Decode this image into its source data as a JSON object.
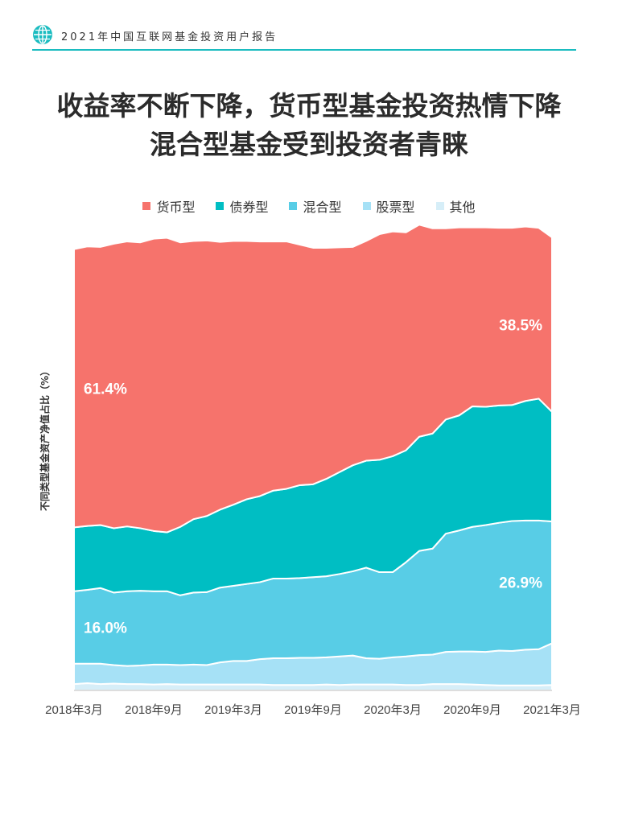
{
  "header": {
    "text": "2021年中国互联网基金投资用户报告",
    "icon": "globe-icon"
  },
  "title_lines": [
    "收益率不断下降，货币型基金投资热情下降",
    "混合型基金受到投资者青睐"
  ],
  "colors": {
    "accent": "#1bbcc0",
    "货币型": "#f6736c",
    "债券型": "#00bec3",
    "混合型": "#58cde6",
    "股票型": "#a6e1f6",
    "其他": "#d6eef8"
  },
  "chart_data": {
    "type": "area",
    "stacked": "percent",
    "ylabel": "不同类型基金资产净值占比（%）",
    "ylim": [
      0,
      100
    ],
    "x": [
      "2018年3月",
      "2018年4月",
      "2018年5月",
      "2018年6月",
      "2018年7月",
      "2018年8月",
      "2018年9月",
      "2018年10月",
      "2018年11月",
      "2018年12月",
      "2019年1月",
      "2019年2月",
      "2019年3月",
      "2019年4月",
      "2019年5月",
      "2019年6月",
      "2019年7月",
      "2019年8月",
      "2019年9月",
      "2019年10月",
      "2019年11月",
      "2019年12月",
      "2020年1月",
      "2020年2月",
      "2020年3月",
      "2020年4月",
      "2020年5月",
      "2020年6月",
      "2020年7月",
      "2020年8月",
      "2020年9月",
      "2020年10月",
      "2020年11月",
      "2020年12月",
      "2021年1月",
      "2021年2月",
      "2021年3月"
    ],
    "xtick_labels": [
      "2018年3月",
      "2018年9月",
      "2019年3月",
      "2019年9月",
      "2020年3月",
      "2020年9月",
      "2021年3月"
    ],
    "legend": [
      "货币型",
      "债券型",
      "混合型",
      "股票型",
      "其他"
    ],
    "legend_position": "top",
    "series": [
      {
        "name": "其他",
        "values": [
          1.4,
          1.6,
          1.4,
          1.5,
          1.4,
          1.4,
          1.3,
          1.4,
          1.3,
          1.3,
          1.3,
          1.3,
          1.3,
          1.3,
          1.3,
          1.2,
          1.2,
          1.2,
          1.2,
          1.3,
          1.2,
          1.3,
          1.3,
          1.3,
          1.3,
          1.2,
          1.2,
          1.4,
          1.4,
          1.4,
          1.3,
          1.2,
          1.1,
          1.1,
          1.1,
          1.1,
          1.2
        ]
      },
      {
        "name": "股票型",
        "values": [
          4.5,
          4.3,
          4.5,
          4.1,
          4.0,
          4.1,
          4.4,
          4.3,
          4.3,
          4.4,
          4.3,
          4.9,
          5.2,
          5.2,
          5.6,
          5.9,
          5.9,
          6.0,
          6.0,
          6.0,
          6.3,
          6.4,
          5.8,
          5.7,
          6.0,
          6.3,
          6.6,
          6.5,
          7.1,
          7.2,
          7.3,
          7.3,
          7.7,
          7.6,
          7.9,
          8.0,
          9.2
        ]
      },
      {
        "name": "混合型",
        "values": [
          16.0,
          16.3,
          16.7,
          16.0,
          16.5,
          16.5,
          16.2,
          16.2,
          15.4,
          15.9,
          16.1,
          16.5,
          16.6,
          17.0,
          17.0,
          17.6,
          17.6,
          17.6,
          17.8,
          17.9,
          18.2,
          18.6,
          20.0,
          19.1,
          18.8,
          20.8,
          23.0,
          23.4,
          26.1,
          26.7,
          27.5,
          28.0,
          28.2,
          28.7,
          28.5,
          28.4,
          26.9
        ]
      },
      {
        "name": "债券型",
        "values": [
          14.1,
          14.1,
          13.9,
          14.2,
          14.3,
          13.8,
          13.3,
          13.0,
          15.1,
          16.2,
          16.8,
          17.2,
          17.9,
          18.7,
          19.0,
          19.4,
          19.8,
          20.5,
          20.5,
          21.5,
          22.5,
          23.4,
          23.6,
          24.8,
          25.6,
          24.7,
          25.2,
          25.4,
          25.2,
          25.4,
          26.6,
          26.1,
          25.9,
          25.6,
          26.4,
          26.9,
          24.2
        ]
      },
      {
        "name": "货币型",
        "values": [
          61.4,
          61.7,
          61.4,
          62.8,
          62.9,
          63.1,
          64.5,
          65.0,
          62.8,
          61.4,
          60.8,
          59.1,
          58.2,
          57.0,
          56.2,
          55.0,
          54.6,
          53.1,
          52.2,
          51.0,
          49.6,
          48.2,
          48.5,
          49.8,
          49.6,
          48.1,
          46.8,
          45.3,
          42.2,
          41.5,
          39.5,
          39.6,
          39.2,
          39.1,
          38.5,
          37.7,
          38.5
        ]
      }
    ],
    "annotations": [
      {
        "text": "61.4%",
        "series": "货币型",
        "x": "2018年3月"
      },
      {
        "text": "38.5%",
        "series": "货币型",
        "x": "2021年3月"
      },
      {
        "text": "16.0%",
        "series": "混合型",
        "x": "2018年3月"
      },
      {
        "text": "26.9%",
        "series": "混合型",
        "x": "2021年3月"
      }
    ]
  }
}
